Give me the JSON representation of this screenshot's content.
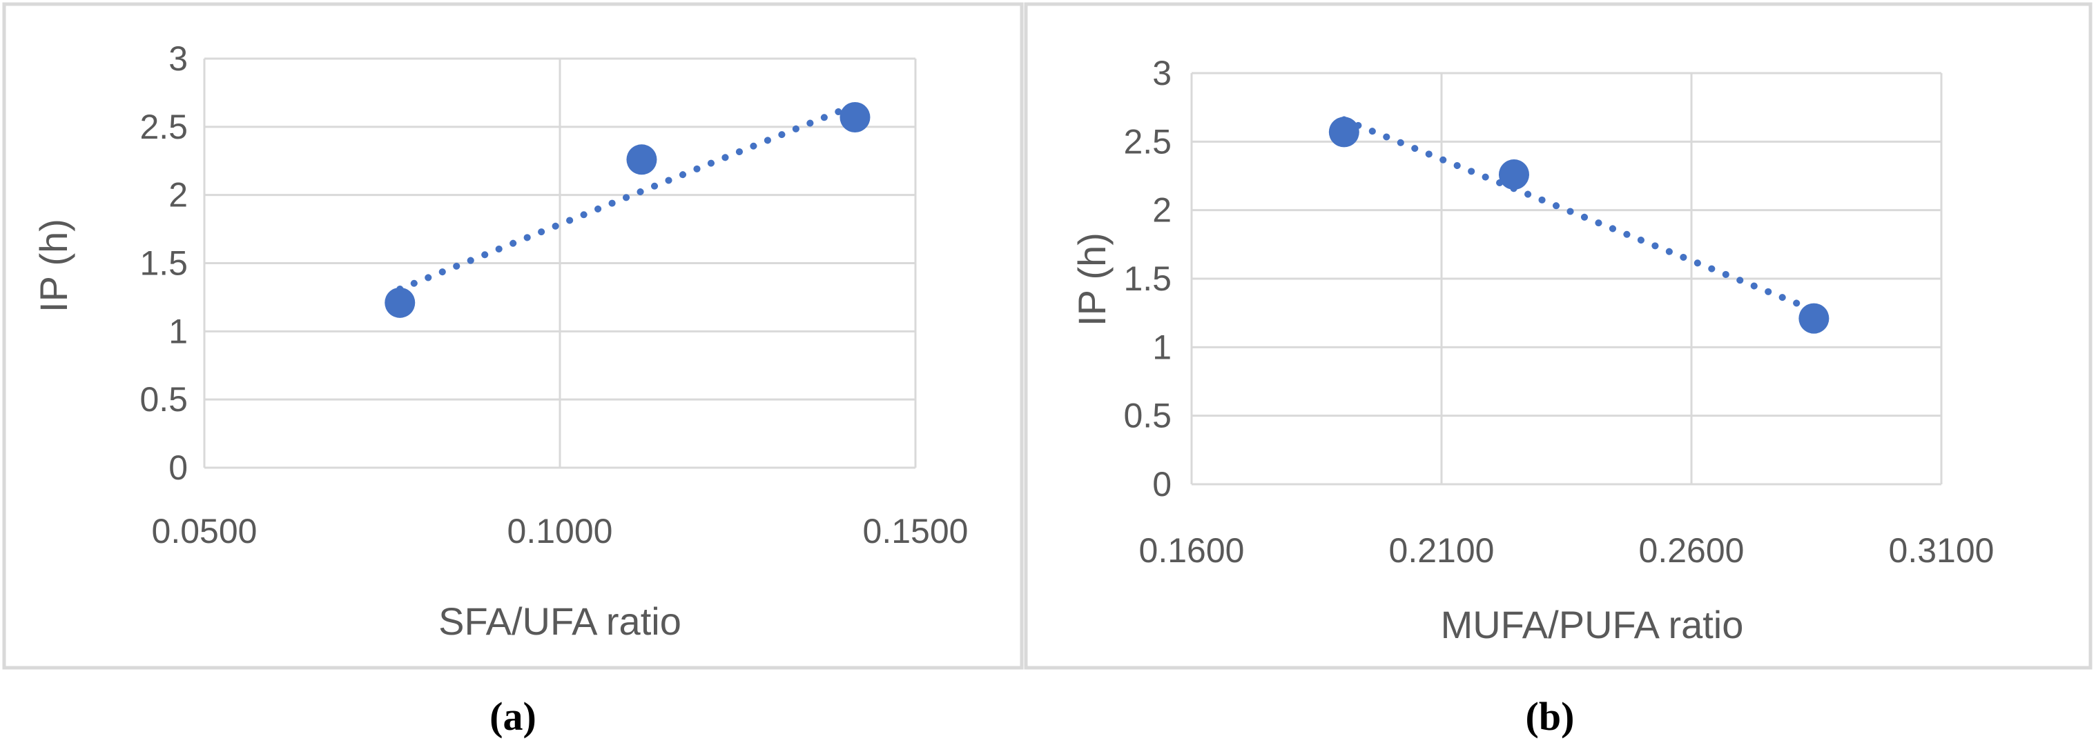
{
  "colors": {
    "marker": "#4472C4",
    "trendline": "#4472C4",
    "grid": "#d9d9d9",
    "border": "#d9d9d9",
    "text": "#595959"
  },
  "chart_data": [
    {
      "type": "scatter",
      "xlabel": "SFA/UFA ratio",
      "ylabel": "IP (h)",
      "xlim": [
        0.05,
        0.15
      ],
      "ylim": [
        0,
        3
      ],
      "x_ticks": [
        0.05,
        0.1,
        0.15
      ],
      "x_tick_labels": [
        "0.0500",
        "0.1000",
        "0.1500"
      ],
      "y_ticks": [
        0,
        0.5,
        1,
        1.5,
        2,
        2.5,
        3
      ],
      "y_tick_labels": [
        "0",
        "0.5",
        "1",
        "1.5",
        "2",
        "2.5",
        "3"
      ],
      "grid": true,
      "trendline": "linear, dotted",
      "points": [
        {
          "x": 0.0775,
          "y": 1.21
        },
        {
          "x": 0.1115,
          "y": 2.26
        },
        {
          "x": 0.1415,
          "y": 2.57
        }
      ],
      "trend": {
        "x": [
          0.0775,
          0.1415
        ],
        "y": [
          1.31,
          2.66
        ]
      },
      "caption": "(a)"
    },
    {
      "type": "scatter",
      "xlabel": "MUFA/PUFA ratio",
      "ylabel": "IP (h)",
      "xlim": [
        0.16,
        0.31
      ],
      "ylim": [
        0,
        3
      ],
      "x_ticks": [
        0.16,
        0.21,
        0.26,
        0.31
      ],
      "x_tick_labels": [
        "0.1600",
        "0.2100",
        "0.2600",
        "0.3100"
      ],
      "y_ticks": [
        0,
        0.5,
        1,
        1.5,
        2,
        2.5,
        3
      ],
      "y_tick_labels": [
        "0",
        "0.5",
        "1",
        "1.5",
        "2",
        "2.5",
        "3"
      ],
      "grid": true,
      "trendline": "linear, dotted",
      "points": [
        {
          "x": 0.1905,
          "y": 2.57
        },
        {
          "x": 0.2245,
          "y": 2.26
        },
        {
          "x": 0.2845,
          "y": 1.21
        }
      ],
      "trend": {
        "x": [
          0.1905,
          0.2845
        ],
        "y": [
          2.66,
          1.27
        ]
      },
      "caption": "(b)"
    }
  ]
}
